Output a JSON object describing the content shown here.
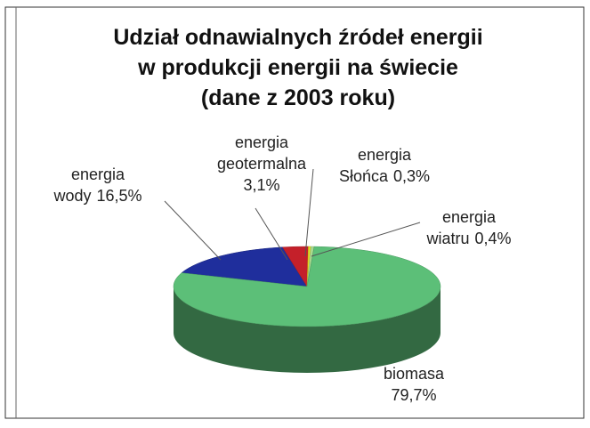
{
  "chart_data": {
    "type": "pie",
    "title": [
      "Udział odnawialnych źródeł energii",
      "w produkcji energii na świecie",
      "(dane z 2003 roku)"
    ],
    "categories": [
      "energia wody",
      "energia geotermalna",
      "energia Słońca",
      "energia wiatru",
      "biomasa"
    ],
    "values": [
      16.5,
      3.1,
      0.3,
      0.4,
      79.7
    ],
    "value_labels": [
      "16,5%",
      "3,1%",
      "0,3%",
      "0,4%",
      "79,7%"
    ],
    "colors": [
      "#1f2e9c",
      "#c4202a",
      "#e6dc1e",
      "#a9d98f",
      "#5cbf78"
    ]
  }
}
